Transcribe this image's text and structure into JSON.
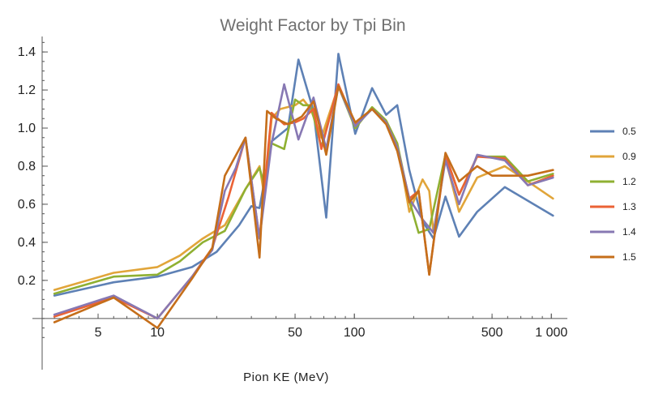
{
  "chart_data": {
    "type": "line",
    "title": "Weight Factor by Tpi Bin",
    "xlabel": "Pion KE (MeV)",
    "ylabel": "",
    "x_scale": "log",
    "xlim": [
      2.6,
      1150
    ],
    "ylim": [
      -0.12,
      1.46
    ],
    "grid": false,
    "legend_position": "right",
    "x_ticks": [
      {
        "value": 5,
        "label": "5"
      },
      {
        "value": 10,
        "label": "10"
      },
      {
        "value": 50,
        "label": "50"
      },
      {
        "value": 100,
        "label": "100"
      },
      {
        "value": 500,
        "label": "500"
      },
      {
        "value": 1000,
        "label": "1 000"
      }
    ],
    "y_ticks": [
      {
        "value": 0.2,
        "label": "0.2"
      },
      {
        "value": 0.4,
        "label": "0.4"
      },
      {
        "value": 0.6,
        "label": "0.6"
      },
      {
        "value": 0.8,
        "label": "0.8"
      },
      {
        "value": 1.0,
        "label": "1.0"
      },
      {
        "value": 1.2,
        "label": "1.2"
      },
      {
        "value": 1.4,
        "label": "1.4"
      }
    ],
    "series": [
      {
        "name": "0.5",
        "color": "#5e81b5",
        "points": [
          [
            3,
            0.12
          ],
          [
            6,
            0.19
          ],
          [
            10,
            0.22
          ],
          [
            15,
            0.27
          ],
          [
            20,
            0.35
          ],
          [
            26,
            0.49
          ],
          [
            30,
            0.59
          ],
          [
            33,
            0.58
          ],
          [
            38,
            0.93
          ],
          [
            46,
            1.0
          ],
          [
            52,
            1.36
          ],
          [
            62,
            1.09
          ],
          [
            72,
            0.53
          ],
          [
            83,
            1.39
          ],
          [
            101,
            0.97
          ],
          [
            123,
            1.21
          ],
          [
            145,
            1.07
          ],
          [
            165,
            1.12
          ],
          [
            190,
            0.78
          ],
          [
            222,
            0.51
          ],
          [
            252,
            0.42
          ],
          [
            290,
            0.64
          ],
          [
            340,
            0.43
          ],
          [
            420,
            0.56
          ],
          [
            580,
            0.69
          ],
          [
            1020,
            0.54
          ]
        ]
      },
      {
        "name": "0.9",
        "color": "#e1a53a",
        "points": [
          [
            3,
            0.15
          ],
          [
            6,
            0.24
          ],
          [
            10,
            0.27
          ],
          [
            13,
            0.33
          ],
          [
            17,
            0.42
          ],
          [
            22,
            0.49
          ],
          [
            28,
            0.68
          ],
          [
            33,
            0.8
          ],
          [
            35,
            0.64
          ],
          [
            38,
            1.05
          ],
          [
            42,
            1.1
          ],
          [
            50,
            1.12
          ],
          [
            55,
            1.15
          ],
          [
            60,
            1.1
          ],
          [
            68,
            0.95
          ],
          [
            83,
            1.22
          ],
          [
            101,
            1.02
          ],
          [
            123,
            1.1
          ],
          [
            145,
            1.03
          ],
          [
            165,
            0.92
          ],
          [
            190,
            0.56
          ],
          [
            222,
            0.73
          ],
          [
            240,
            0.67
          ],
          [
            252,
            0.45
          ],
          [
            290,
            0.84
          ],
          [
            340,
            0.56
          ],
          [
            420,
            0.74
          ],
          [
            580,
            0.8
          ],
          [
            760,
            0.72
          ],
          [
            1020,
            0.63
          ]
        ]
      },
      {
        "name": "1.2",
        "color": "#8fb032",
        "points": [
          [
            3,
            0.13
          ],
          [
            6,
            0.22
          ],
          [
            10,
            0.23
          ],
          [
            13,
            0.3
          ],
          [
            17,
            0.4
          ],
          [
            22,
            0.46
          ],
          [
            28,
            0.68
          ],
          [
            33,
            0.79
          ],
          [
            35,
            0.7
          ],
          [
            38,
            0.92
          ],
          [
            44,
            0.89
          ],
          [
            50,
            1.15
          ],
          [
            55,
            1.12
          ],
          [
            60,
            1.12
          ],
          [
            68,
            0.9
          ],
          [
            83,
            1.22
          ],
          [
            101,
            1.0
          ],
          [
            123,
            1.11
          ],
          [
            145,
            1.04
          ],
          [
            165,
            0.92
          ],
          [
            190,
            0.62
          ],
          [
            212,
            0.45
          ],
          [
            240,
            0.47
          ],
          [
            290,
            0.86
          ],
          [
            340,
            0.65
          ],
          [
            420,
            0.85
          ],
          [
            580,
            0.85
          ],
          [
            760,
            0.72
          ],
          [
            1020,
            0.76
          ]
        ]
      },
      {
        "name": "1.3",
        "color": "#eb6235",
        "points": [
          [
            3,
            0.01
          ],
          [
            6,
            0.11
          ],
          [
            10,
            0.0
          ],
          [
            15,
            0.22
          ],
          [
            19,
            0.37
          ],
          [
            23,
            0.64
          ],
          [
            28,
            0.95
          ],
          [
            33,
            0.42
          ],
          [
            38,
            1.08
          ],
          [
            44,
            1.02
          ],
          [
            50,
            1.03
          ],
          [
            55,
            1.05
          ],
          [
            62,
            1.1
          ],
          [
            68,
            0.89
          ],
          [
            83,
            1.23
          ],
          [
            101,
            1.02
          ],
          [
            123,
            1.1
          ],
          [
            145,
            1.03
          ],
          [
            165,
            0.9
          ],
          [
            190,
            0.63
          ],
          [
            212,
            0.67
          ],
          [
            240,
            0.23
          ],
          [
            290,
            0.86
          ],
          [
            340,
            0.65
          ],
          [
            420,
            0.85
          ],
          [
            580,
            0.84
          ],
          [
            760,
            0.7
          ],
          [
            1020,
            0.75
          ]
        ]
      },
      {
        "name": "1.4",
        "color": "#8778b3",
        "points": [
          [
            3,
            0.02
          ],
          [
            6,
            0.12
          ],
          [
            10,
            0.0
          ],
          [
            15,
            0.22
          ],
          [
            19,
            0.36
          ],
          [
            22,
            0.67
          ],
          [
            25,
            0.79
          ],
          [
            28,
            0.95
          ],
          [
            33,
            0.42
          ],
          [
            38,
            0.92
          ],
          [
            44,
            1.23
          ],
          [
            52,
            0.94
          ],
          [
            62,
            1.16
          ],
          [
            72,
            0.89
          ],
          [
            83,
            1.22
          ],
          [
            101,
            1.01
          ],
          [
            123,
            1.1
          ],
          [
            145,
            1.03
          ],
          [
            165,
            0.9
          ],
          [
            190,
            0.63
          ],
          [
            222,
            0.52
          ],
          [
            252,
            0.45
          ],
          [
            290,
            0.83
          ],
          [
            340,
            0.6
          ],
          [
            420,
            0.86
          ],
          [
            580,
            0.83
          ],
          [
            760,
            0.7
          ],
          [
            1020,
            0.74
          ]
        ]
      },
      {
        "name": "1.5",
        "color": "#c56e1a",
        "points": [
          [
            3,
            -0.02
          ],
          [
            6,
            0.11
          ],
          [
            10,
            -0.05
          ],
          [
            15,
            0.21
          ],
          [
            19,
            0.37
          ],
          [
            22,
            0.75
          ],
          [
            28,
            0.95
          ],
          [
            33,
            0.32
          ],
          [
            36,
            1.09
          ],
          [
            40,
            1.05
          ],
          [
            46,
            1.02
          ],
          [
            54,
            1.06
          ],
          [
            62,
            1.14
          ],
          [
            72,
            0.86
          ],
          [
            83,
            1.22
          ],
          [
            101,
            1.03
          ],
          [
            123,
            1.1
          ],
          [
            145,
            1.02
          ],
          [
            165,
            0.88
          ],
          [
            190,
            0.61
          ],
          [
            212,
            0.67
          ],
          [
            240,
            0.23
          ],
          [
            290,
            0.87
          ],
          [
            340,
            0.72
          ],
          [
            420,
            0.8
          ],
          [
            500,
            0.75
          ],
          [
            580,
            0.75
          ],
          [
            760,
            0.75
          ],
          [
            1020,
            0.78
          ]
        ]
      }
    ]
  }
}
